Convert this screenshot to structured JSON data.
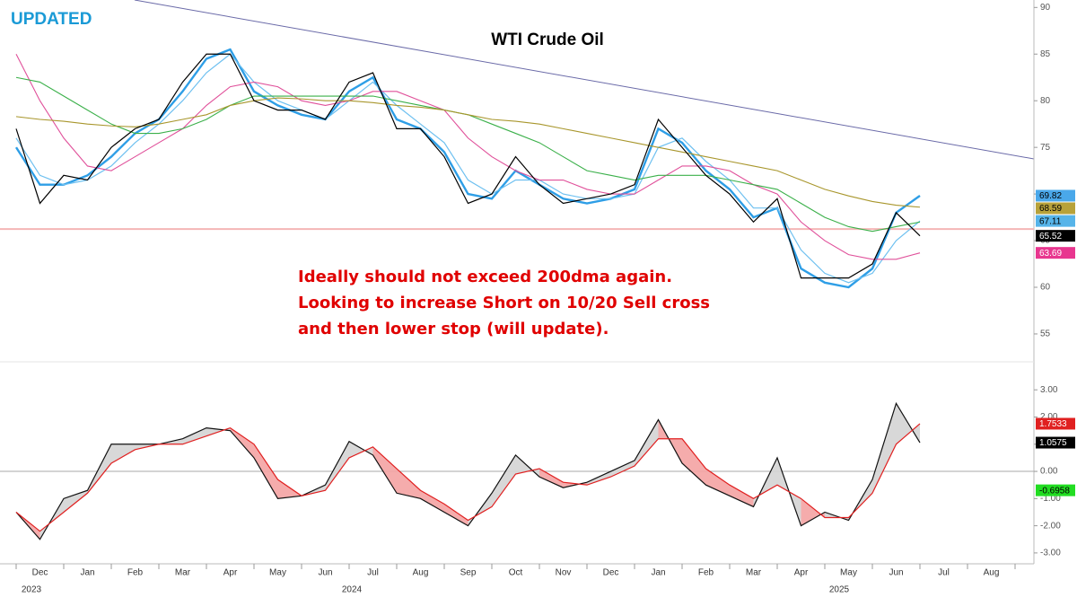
{
  "tag": "UPDATED",
  "annotation": [
    "Ideally should not exceed 200dma again.",
    "Looking to increase Short on 10/20 Sell cross",
    "and then lower stop (will update)."
  ],
  "years": [
    "2023",
    "2024",
    "2025"
  ],
  "chart_data": [
    {
      "type": "line",
      "title": "WTI Crude Oil",
      "categories": [
        null,
        "Dec",
        null,
        "Jan",
        null,
        "Feb",
        null,
        "Mar",
        null,
        "Apr",
        null,
        "May",
        null,
        "Jun",
        null,
        "Jul",
        null,
        "Aug",
        null,
        "Sep",
        null,
        "Oct",
        null,
        "Nov",
        null,
        "Dec",
        null,
        "Jan",
        null,
        "Feb",
        null,
        "Mar",
        null,
        "Apr",
        null,
        "May",
        null,
        "Jun",
        null,
        "Jul",
        null,
        "Aug",
        null
      ],
      "ylim": [
        52.3,
        90.8
      ],
      "yticks": [
        55,
        60,
        65,
        70,
        75,
        80,
        85,
        90
      ],
      "reference_line": 66.25,
      "reference_color": "#f4b6b6",
      "series": [
        {
          "color": "#2e9ee6",
          "width": 2.4,
          "label_box": "#4aa8ea",
          "label_text": "#000000",
          "values": [
            75,
            71,
            71,
            72,
            74,
            76.5,
            78,
            81,
            84.5,
            85.5,
            81,
            79.5,
            78.5,
            78,
            81,
            82.5,
            78,
            77,
            74.5,
            70,
            69.5,
            72.5,
            71,
            69.5,
            69,
            69.5,
            70.5,
            77,
            75.5,
            72.5,
            70.5,
            67.5,
            68.5,
            62,
            60.5,
            60,
            62,
            68,
            69.82,
            null,
            null,
            null,
            null
          ]
        },
        {
          "color": "#6ec0f0",
          "width": 1.2,
          "label_box": "#56b4e9",
          "label_text": "#000000",
          "values": [
            76,
            72,
            71,
            71.5,
            73,
            75.5,
            77.5,
            80,
            83,
            85,
            82,
            80,
            79,
            78,
            80,
            82,
            79.5,
            77.5,
            75.5,
            71.5,
            70,
            71.5,
            71.5,
            70,
            69.5,
            69.5,
            70,
            75,
            76,
            73.5,
            71.5,
            68.5,
            68.5,
            64,
            61.5,
            60.5,
            61.5,
            65,
            67.11,
            null,
            null,
            null,
            null
          ]
        },
        {
          "color": "#e0509a",
          "width": 1.1,
          "label_box": "#e8368f",
          "label_text": "#ffffff",
          "values": [
            85,
            80,
            76,
            73,
            72.5,
            74,
            75.5,
            77,
            79.5,
            81.5,
            82,
            81.5,
            80,
            79.5,
            80,
            81,
            81,
            80,
            79,
            76,
            74,
            72.5,
            71.5,
            71.5,
            70.5,
            70,
            70,
            71.5,
            73,
            73,
            72.5,
            71,
            70,
            67,
            65,
            63.5,
            63,
            63,
            63.69,
            null,
            null,
            null,
            null
          ]
        },
        {
          "color": "#3bb04a",
          "width": 1.1,
          "values": [
            82.5,
            82,
            80.5,
            79,
            77.5,
            76.5,
            76.5,
            77,
            78,
            79.5,
            80.5,
            80.5,
            80.5,
            80.5,
            80.5,
            80.5,
            80,
            79.5,
            79,
            78.5,
            77.5,
            76.5,
            75.5,
            74,
            72.5,
            72,
            71.5,
            72,
            72,
            72,
            71.5,
            71,
            70.5,
            69,
            67.5,
            66.5,
            66,
            66.5,
            67,
            null,
            null,
            null,
            null
          ]
        },
        {
          "color": "#a8962c",
          "width": 1.1,
          "label_box": "#b8a23a",
          "label_text": "#000000",
          "values": [
            78.3,
            78,
            77.8,
            77.5,
            77.3,
            77.2,
            77.5,
            78,
            78.5,
            79.5,
            80,
            80.3,
            80.2,
            80,
            80,
            79.8,
            79.5,
            79.3,
            79,
            78.5,
            78,
            77.8,
            77.5,
            77,
            76.5,
            76,
            75.5,
            75,
            74.5,
            74,
            73.5,
            73,
            72.5,
            71.5,
            70.5,
            69.8,
            69.2,
            68.8,
            68.59,
            null,
            null,
            null,
            null
          ]
        },
        {
          "color": "#000000",
          "width": 1.2,
          "label_box": "#000000",
          "label_text": "#ffffff",
          "values": [
            77,
            69,
            72,
            71.5,
            75,
            77,
            78,
            82,
            85,
            85,
            80,
            79,
            79,
            78,
            82,
            83,
            77,
            77,
            74,
            69,
            70,
            74,
            71,
            69,
            69.5,
            70,
            71,
            78,
            75,
            72,
            70,
            67,
            69.5,
            61,
            61,
            61,
            62.5,
            68,
            65.52,
            null,
            null,
            null,
            null
          ]
        }
      ]
    },
    {
      "type": "line",
      "ylim": [
        -3.4,
        3.8
      ],
      "yticks": [
        {
          "value": -3,
          "label": "-3.00"
        },
        {
          "value": -2,
          "label": "-2.00"
        },
        {
          "value": -1,
          "label": "-1.00"
        },
        {
          "value": 0,
          "label": "0.00"
        },
        {
          "value": 1,
          "label": "1.00"
        },
        {
          "value": 2,
          "label": "2.00"
        },
        {
          "value": 3,
          "label": "3.00"
        }
      ],
      "reference_line": 0,
      "reference_color": "#aaaaaa",
      "fill_above": "#d4d4d4",
      "fill_below": "#f4a3a3",
      "spread": {
        "value": -0.6958,
        "color": "#22dd22"
      },
      "series": [
        {
          "color": "#111111",
          "width": 1.2,
          "label_box": "#000000",
          "label_text": "#ffffff",
          "values": [
            -1.5,
            -2.5,
            -1,
            -0.7,
            1,
            1,
            1,
            1.2,
            1.6,
            1.5,
            0.5,
            -1,
            -0.9,
            -0.5,
            1.1,
            0.6,
            -0.8,
            -1,
            -1.5,
            -2,
            -0.8,
            0.6,
            -0.2,
            -0.6,
            -0.4,
            0,
            0.4,
            1.9,
            0.3,
            -0.5,
            -0.9,
            -1.3,
            0.5,
            -2,
            -1.5,
            -1.8,
            -0.3,
            2.5,
            1.0575,
            null,
            null,
            null,
            null
          ]
        },
        {
          "color": "#e02020",
          "width": 1.2,
          "label_box": "#e02020",
          "label_text": "#ffffff",
          "values": [
            -1.5,
            -2.2,
            -1.5,
            -0.8,
            0.3,
            0.8,
            1,
            1,
            1.3,
            1.6,
            1,
            -0.3,
            -0.9,
            -0.7,
            0.5,
            0.9,
            0.1,
            -0.7,
            -1.2,
            -1.8,
            -1.3,
            -0.1,
            0.1,
            -0.4,
            -0.5,
            -0.2,
            0.2,
            1.2,
            1.2,
            0.1,
            -0.5,
            -1,
            -0.5,
            -1,
            -1.7,
            -1.7,
            -0.8,
            1,
            1.7533,
            null,
            null,
            null,
            null
          ]
        }
      ]
    }
  ]
}
